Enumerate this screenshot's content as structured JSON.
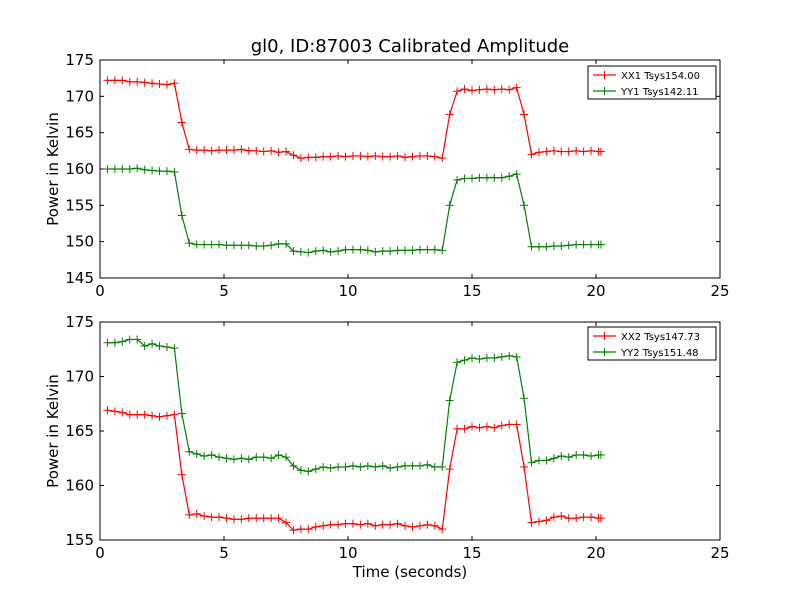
{
  "figure": {
    "title": "gl0, ID:87003 Calibrated Amplitude"
  },
  "chart_data": [
    {
      "type": "line",
      "title": "gl0, ID:87003 Calibrated Amplitude",
      "xlabel": "",
      "ylabel": "Power in Kelvin",
      "xlim": [
        0,
        25
      ],
      "ylim": [
        145,
        175
      ],
      "xticks": [
        0,
        5,
        10,
        15,
        20,
        25
      ],
      "yticks": [
        145,
        150,
        155,
        160,
        165,
        170,
        175
      ],
      "grid": false,
      "legend_position": "top-right",
      "x": [
        0.3,
        0.6,
        0.9,
        1.2,
        1.5,
        1.8,
        2.1,
        2.4,
        2.7,
        3.0,
        3.3,
        3.6,
        3.9,
        4.2,
        4.5,
        4.8,
        5.1,
        5.4,
        5.7,
        6.0,
        6.3,
        6.6,
        6.9,
        7.2,
        7.5,
        7.8,
        8.1,
        8.4,
        8.7,
        9.0,
        9.3,
        9.6,
        9.9,
        10.2,
        10.5,
        10.8,
        11.1,
        11.4,
        11.7,
        12.0,
        12.3,
        12.6,
        12.9,
        13.2,
        13.5,
        13.8,
        14.1,
        14.4,
        14.7,
        15.0,
        15.3,
        15.6,
        15.9,
        16.2,
        16.5,
        16.8,
        17.1,
        17.4,
        17.7,
        18.0,
        18.3,
        18.6,
        18.9,
        19.2,
        19.5,
        19.8,
        20.1,
        20.2
      ],
      "series": [
        {
          "name": "XX1 Tsys154.00",
          "color": "#ff0000",
          "values": [
            172.2,
            172.2,
            172.2,
            172.0,
            172.0,
            171.9,
            171.8,
            171.7,
            171.6,
            171.8,
            166.4,
            162.7,
            162.6,
            162.6,
            162.5,
            162.6,
            162.6,
            162.6,
            162.7,
            162.5,
            162.5,
            162.4,
            162.5,
            162.3,
            162.4,
            161.9,
            161.5,
            161.6,
            161.6,
            161.7,
            161.7,
            161.8,
            161.7,
            161.8,
            161.8,
            161.7,
            161.8,
            161.7,
            161.7,
            161.8,
            161.6,
            161.7,
            161.8,
            161.8,
            161.7,
            161.5,
            167.5,
            170.7,
            171.0,
            170.8,
            170.9,
            171.0,
            170.9,
            171.0,
            170.9,
            171.2,
            167.5,
            162.0,
            162.3,
            162.4,
            162.5,
            162.4,
            162.4,
            162.5,
            162.4,
            162.5,
            162.4,
            162.4
          ]
        },
        {
          "name": "YY1 Tsys142.11",
          "color": "#008000",
          "values": [
            160.0,
            160.0,
            160.0,
            160.0,
            160.1,
            159.9,
            159.8,
            159.7,
            159.7,
            159.6,
            153.6,
            149.8,
            149.6,
            149.6,
            149.6,
            149.6,
            149.5,
            149.5,
            149.5,
            149.5,
            149.4,
            149.4,
            149.5,
            149.7,
            149.7,
            148.7,
            148.6,
            148.5,
            148.7,
            148.8,
            148.6,
            148.7,
            148.9,
            148.9,
            148.9,
            148.8,
            148.6,
            148.7,
            148.7,
            148.8,
            148.8,
            148.8,
            148.9,
            148.9,
            148.9,
            148.8,
            155.0,
            158.5,
            158.7,
            158.7,
            158.8,
            158.8,
            158.8,
            158.8,
            159.0,
            159.3,
            155.0,
            149.3,
            149.3,
            149.3,
            149.4,
            149.4,
            149.5,
            149.6,
            149.6,
            149.6,
            149.6,
            149.6
          ]
        }
      ]
    },
    {
      "type": "line",
      "title": "",
      "xlabel": "Time (seconds)",
      "ylabel": "Power in Kelvin",
      "xlim": [
        0,
        25
      ],
      "ylim": [
        155,
        175
      ],
      "xticks": [
        0,
        5,
        10,
        15,
        20,
        25
      ],
      "yticks": [
        155,
        160,
        165,
        170,
        175
      ],
      "grid": false,
      "legend_position": "top-right",
      "x": [
        0.3,
        0.6,
        0.9,
        1.2,
        1.5,
        1.8,
        2.1,
        2.4,
        2.7,
        3.0,
        3.3,
        3.6,
        3.9,
        4.2,
        4.5,
        4.8,
        5.1,
        5.4,
        5.7,
        6.0,
        6.3,
        6.6,
        6.9,
        7.2,
        7.5,
        7.8,
        8.1,
        8.4,
        8.7,
        9.0,
        9.3,
        9.6,
        9.9,
        10.2,
        10.5,
        10.8,
        11.1,
        11.4,
        11.7,
        12.0,
        12.3,
        12.6,
        12.9,
        13.2,
        13.5,
        13.8,
        14.1,
        14.4,
        14.7,
        15.0,
        15.3,
        15.6,
        15.9,
        16.2,
        16.5,
        16.8,
        17.1,
        17.4,
        17.7,
        18.0,
        18.3,
        18.6,
        18.9,
        19.2,
        19.5,
        19.8,
        20.1,
        20.2
      ],
      "series": [
        {
          "name": "XX2 Tsys147.73",
          "color": "#ff0000",
          "values": [
            166.9,
            166.8,
            166.7,
            166.5,
            166.5,
            166.5,
            166.4,
            166.3,
            166.4,
            166.5,
            161.0,
            157.3,
            157.4,
            157.2,
            157.1,
            157.1,
            157.0,
            156.9,
            156.9,
            157.0,
            157.0,
            157.0,
            157.0,
            157.0,
            156.6,
            155.9,
            156.0,
            156.0,
            156.2,
            156.3,
            156.4,
            156.4,
            156.5,
            156.5,
            156.4,
            156.5,
            156.3,
            156.4,
            156.4,
            156.5,
            156.3,
            156.2,
            156.3,
            156.4,
            156.3,
            156.0,
            161.5,
            165.2,
            165.2,
            165.4,
            165.3,
            165.4,
            165.3,
            165.5,
            165.6,
            165.6,
            161.7,
            156.6,
            156.7,
            156.8,
            157.1,
            157.2,
            157.0,
            157.0,
            157.1,
            157.1,
            157.0,
            157.0
          ]
        },
        {
          "name": "YY2 Tsys151.48",
          "color": "#008000",
          "values": [
            173.1,
            173.1,
            173.2,
            173.4,
            173.4,
            172.8,
            173.0,
            172.8,
            172.7,
            172.6,
            166.6,
            163.1,
            162.9,
            162.7,
            162.8,
            162.6,
            162.5,
            162.4,
            162.5,
            162.4,
            162.6,
            162.6,
            162.5,
            162.8,
            162.6,
            161.8,
            161.4,
            161.3,
            161.5,
            161.7,
            161.6,
            161.7,
            161.7,
            161.8,
            161.7,
            161.8,
            161.7,
            161.8,
            161.6,
            161.7,
            161.8,
            161.8,
            161.8,
            161.9,
            161.7,
            161.7,
            167.8,
            171.3,
            171.5,
            171.7,
            171.6,
            171.7,
            171.7,
            171.8,
            171.9,
            171.8,
            168.0,
            162.1,
            162.3,
            162.3,
            162.5,
            162.7,
            162.6,
            162.8,
            162.8,
            162.7,
            162.8,
            162.8
          ]
        }
      ]
    }
  ]
}
